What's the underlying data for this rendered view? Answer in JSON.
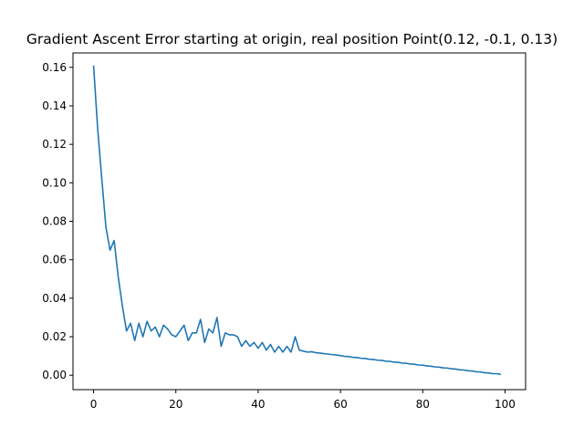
{
  "chart_data": {
    "type": "line",
    "title": "Gradient Ascent Error starting at origin, real position Point(0.12, -0.1, 0.13)",
    "xlabel": "",
    "ylabel": "",
    "xlim": [
      -5,
      105
    ],
    "ylim": [
      -0.0075,
      0.1675
    ],
    "xticks": [
      0,
      20,
      40,
      60,
      80,
      100
    ],
    "yticks": [
      0.0,
      0.02,
      0.04,
      0.06,
      0.08,
      0.1,
      0.12,
      0.14,
      0.16
    ],
    "xtick_labels": [
      "0",
      "20",
      "40",
      "60",
      "80",
      "100"
    ],
    "ytick_labels": [
      "0.00",
      "0.02",
      "0.04",
      "0.06",
      "0.08",
      "0.10",
      "0.12",
      "0.14",
      "0.16"
    ],
    "grid": false,
    "legend": "none",
    "series": [
      {
        "color": "#1f77b4",
        "x": [
          0,
          1,
          2,
          3,
          4,
          5,
          6,
          7,
          8,
          9,
          10,
          11,
          12,
          13,
          14,
          15,
          16,
          17,
          18,
          19,
          20,
          21,
          22,
          23,
          24,
          25,
          26,
          27,
          28,
          29,
          30,
          31,
          32,
          33,
          34,
          35,
          36,
          37,
          38,
          39,
          40,
          41,
          42,
          43,
          44,
          45,
          46,
          47,
          48,
          49,
          50,
          51,
          52,
          53,
          54,
          55,
          56,
          57,
          58,
          59,
          60,
          61,
          62,
          63,
          64,
          65,
          66,
          67,
          68,
          69,
          70,
          71,
          72,
          73,
          74,
          75,
          76,
          77,
          78,
          79,
          80,
          81,
          82,
          83,
          84,
          85,
          86,
          87,
          88,
          89,
          90,
          91,
          92,
          93,
          94,
          95,
          96,
          97,
          98,
          99
        ],
        "values": [
          0.161,
          0.128,
          0.102,
          0.077,
          0.065,
          0.07,
          0.051,
          0.036,
          0.023,
          0.027,
          0.018,
          0.027,
          0.02,
          0.028,
          0.023,
          0.025,
          0.02,
          0.026,
          0.024,
          0.021,
          0.02,
          0.023,
          0.026,
          0.018,
          0.022,
          0.022,
          0.029,
          0.017,
          0.024,
          0.022,
          0.03,
          0.015,
          0.022,
          0.021,
          0.021,
          0.02,
          0.015,
          0.018,
          0.015,
          0.017,
          0.014,
          0.017,
          0.013,
          0.016,
          0.012,
          0.015,
          0.012,
          0.015,
          0.012,
          0.02,
          0.013,
          0.0125,
          0.012,
          0.0122,
          0.0117,
          0.0115,
          0.0112,
          0.011,
          0.0107,
          0.0105,
          0.0102,
          0.0098,
          0.0097,
          0.0093,
          0.0092,
          0.0088,
          0.0087,
          0.0083,
          0.0082,
          0.0078,
          0.0077,
          0.0073,
          0.0072,
          0.0068,
          0.0067,
          0.0063,
          0.0062,
          0.0058,
          0.0057,
          0.0053,
          0.0052,
          0.0048,
          0.0047,
          0.0043,
          0.0042,
          0.0038,
          0.0037,
          0.0033,
          0.0032,
          0.0028,
          0.0027,
          0.0023,
          0.0022,
          0.0018,
          0.0017,
          0.0013,
          0.0012,
          0.0008,
          0.0008,
          0.0004
        ]
      }
    ]
  }
}
